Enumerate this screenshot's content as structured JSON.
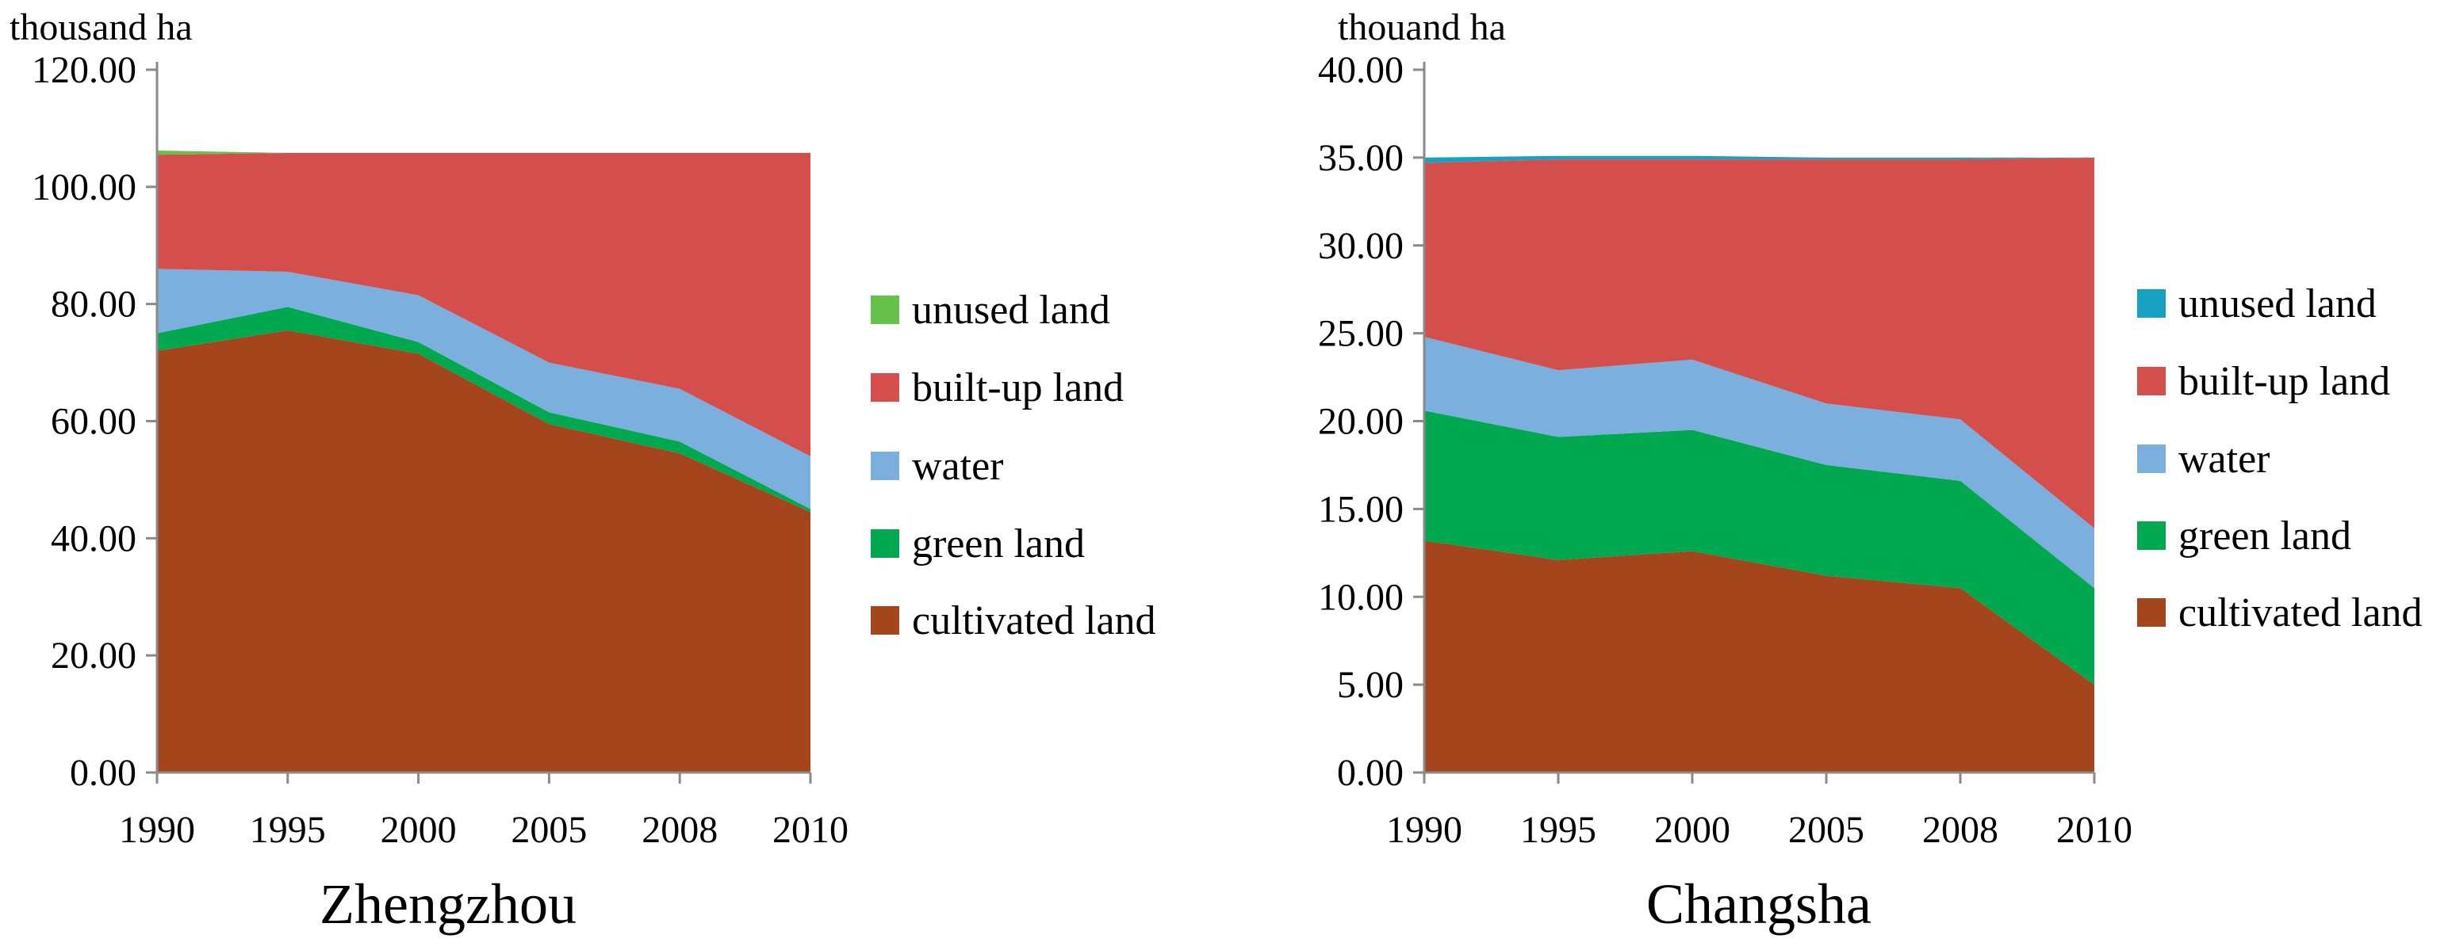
{
  "chart_data": [
    {
      "type": "area",
      "stacked": true,
      "title": "Zhengzhou",
      "ylabel": "thousand ha",
      "categories": [
        "1990",
        "1995",
        "2000",
        "2005",
        "2008",
        "2010"
      ],
      "ylim": [
        0,
        120
      ],
      "yticks": [
        "0.00",
        "20.00",
        "40.00",
        "60.00",
        "80.00",
        "100.00",
        "120.00"
      ],
      "legend_position": "right",
      "series": [
        {
          "name": "cultivated land",
          "color": "#A5451B",
          "values": [
            72.0,
            75.5,
            71.5,
            59.5,
            54.5,
            44.5
          ]
        },
        {
          "name": "green land",
          "color": "#00A850",
          "values": [
            3.0,
            4.0,
            2.0,
            2.0,
            2.0,
            0.5
          ]
        },
        {
          "name": "water",
          "color": "#7BAFDE",
          "values": [
            11.0,
            6.0,
            8.0,
            8.5,
            9.0,
            9.0
          ]
        },
        {
          "name": "built-up land",
          "color": "#D44E4C",
          "values": [
            19.5,
            20.3,
            24.3,
            35.8,
            40.3,
            51.8
          ]
        },
        {
          "name": "unused land",
          "color": "#66C24A",
          "values": [
            0.7,
            0.0,
            0.0,
            0.0,
            0.0,
            0.0
          ]
        }
      ]
    },
    {
      "type": "area",
      "stacked": true,
      "title": "Changsha",
      "ylabel": "thouand ha",
      "categories": [
        "1990",
        "1995",
        "2000",
        "2005",
        "2008",
        "2010"
      ],
      "ylim": [
        0,
        40
      ],
      "yticks": [
        "0.00",
        "5.00",
        "10.00",
        "15.00",
        "20.00",
        "25.00",
        "30.00",
        "35.00",
        "40.00"
      ],
      "legend_position": "right",
      "series": [
        {
          "name": "cultivated land",
          "color": "#A5451B",
          "values": [
            13.2,
            12.1,
            12.6,
            11.2,
            10.5,
            5.0
          ]
        },
        {
          "name": "green land",
          "color": "#00A850",
          "values": [
            7.4,
            7.0,
            6.9,
            6.3,
            6.1,
            5.5
          ]
        },
        {
          "name": "water",
          "color": "#7BAFDE",
          "values": [
            4.2,
            3.8,
            4.0,
            3.5,
            3.5,
            3.4
          ]
        },
        {
          "name": "built-up land",
          "color": "#D44E4C",
          "values": [
            9.9,
            12.0,
            11.4,
            13.9,
            14.8,
            21.1
          ]
        },
        {
          "name": "unused land",
          "color": "#17A2C3",
          "values": [
            0.3,
            0.2,
            0.2,
            0.1,
            0.1,
            0.0
          ]
        }
      ]
    }
  ]
}
